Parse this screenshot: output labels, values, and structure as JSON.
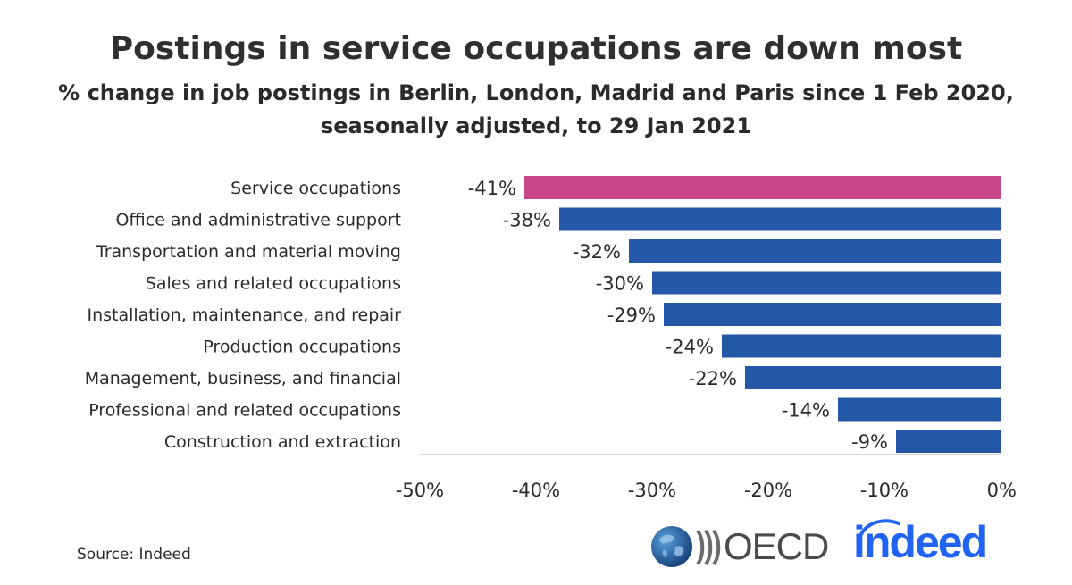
{
  "title": "Postings in service occupations are down most",
  "subtitle_line1": "% change in job postings in Berlin, London, Madrid and Paris since 1 Feb 2020,",
  "subtitle_line2": "seasonally adjusted, to 29 Jan 2021",
  "source": "Source: Indeed",
  "logos": {
    "oecd": "OECD",
    "indeed": "indeed"
  },
  "colors": {
    "highlight": "#c8468a",
    "bar": "#2557a7",
    "axis": "#c8c8c8",
    "oecd_globe": "#1f5fa0",
    "indeed_blue": "#2164f3"
  },
  "chart_data": {
    "type": "bar",
    "orientation": "horizontal",
    "categories": [
      "Service occupations",
      "Office and administrative support",
      "Transportation and material moving",
      "Sales and related occupations",
      "Installation, maintenance, and repair",
      "Production occupations",
      "Management, business, and financial",
      "Professional and related occupations",
      "Construction and extraction"
    ],
    "values": [
      -41,
      -38,
      -32,
      -30,
      -29,
      -24,
      -22,
      -14,
      -9
    ],
    "data_labels": [
      "-41%",
      "-38%",
      "-32%",
      "-30%",
      "-29%",
      "-24%",
      "-22%",
      "-14%",
      "-9%"
    ],
    "highlight_index": 0,
    "xlim": [
      -50,
      0
    ],
    "xticks": [
      -50,
      -40,
      -30,
      -20,
      -10,
      0
    ],
    "xtick_labels": [
      "-50%",
      "-40%",
      "-30%",
      "-20%",
      "-10%",
      "0%"
    ],
    "xlabel": "",
    "ylabel": "",
    "grid": false,
    "legend": "none"
  }
}
